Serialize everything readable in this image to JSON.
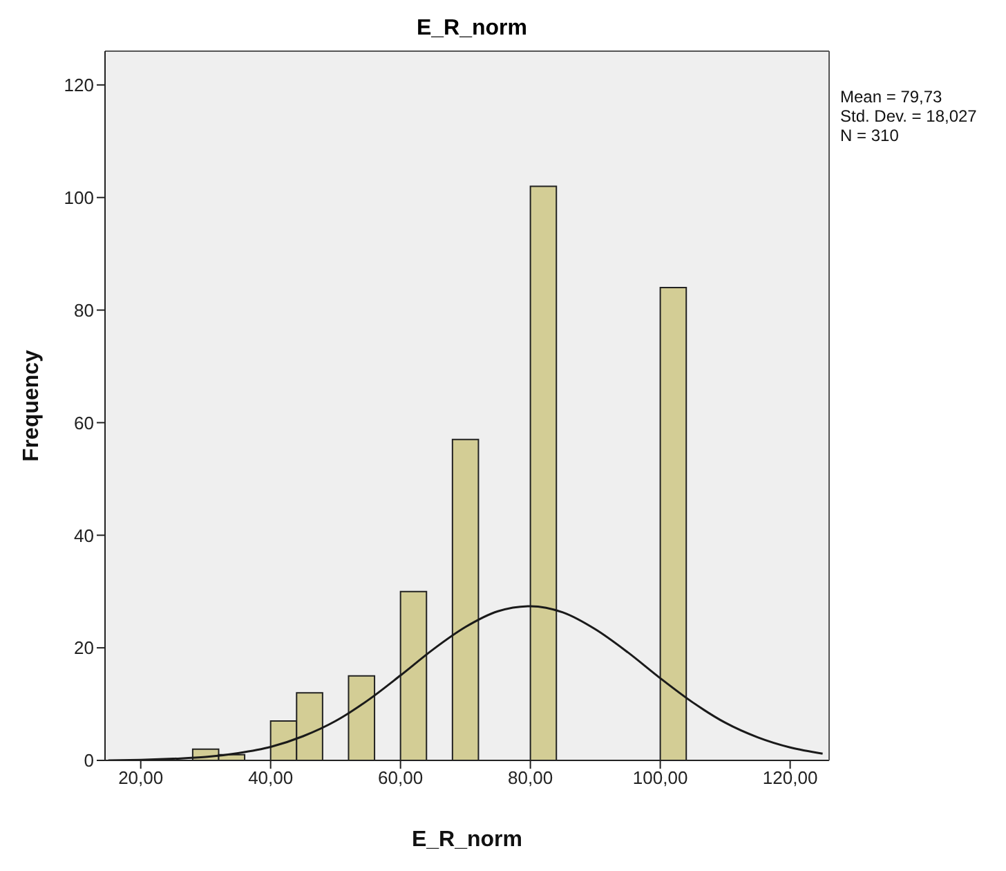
{
  "chart_data": {
    "type": "histogram",
    "title": "E_R_norm",
    "xlabel": "E_R_norm",
    "ylabel": "Frequency",
    "bins": [
      28,
      32,
      36,
      40,
      44,
      48,
      52,
      56,
      60,
      64,
      68,
      72,
      76,
      80,
      84,
      88,
      92,
      96,
      100,
      104
    ],
    "values": [
      2,
      1,
      0,
      7,
      12,
      0,
      15,
      0,
      30,
      0,
      57,
      0,
      0,
      102,
      0,
      0,
      0,
      0,
      84
    ],
    "color": "#d3cd95",
    "xlim": [
      14.5,
      126
    ],
    "xticks": [
      {
        "value": 20,
        "label": "20,00"
      },
      {
        "value": 40,
        "label": "40,00"
      },
      {
        "value": 60,
        "label": "60,00"
      },
      {
        "value": 80,
        "label": "80,00"
      },
      {
        "value": 100,
        "label": "100,00"
      },
      {
        "value": 120,
        "label": "120,00"
      }
    ],
    "ylim": [
      0,
      126
    ],
    "yticks": [
      0,
      20,
      40,
      60,
      80,
      100,
      120
    ],
    "annotations": [
      "Mean = 79,73",
      "Std. Dev. = 18,027",
      "N = 310"
    ],
    "series": [
      {
        "type": "line",
        "color": "#1a1a1a",
        "x": [
          15,
          20,
          25,
          30,
          35,
          40,
          45,
          50,
          55,
          60,
          65,
          70,
          75,
          80,
          85,
          90,
          95,
          100,
          105,
          110,
          115,
          120,
          125
        ],
        "values": [
          0.0,
          0.1,
          0.3,
          0.6,
          1.3,
          2.4,
          4.3,
          7.0,
          10.7,
          15.1,
          19.7,
          23.7,
          26.5,
          27.4,
          26.3,
          23.3,
          19.2,
          14.6,
          10.3,
          6.7,
          4.1,
          2.3,
          1.2
        ]
      }
    ]
  }
}
